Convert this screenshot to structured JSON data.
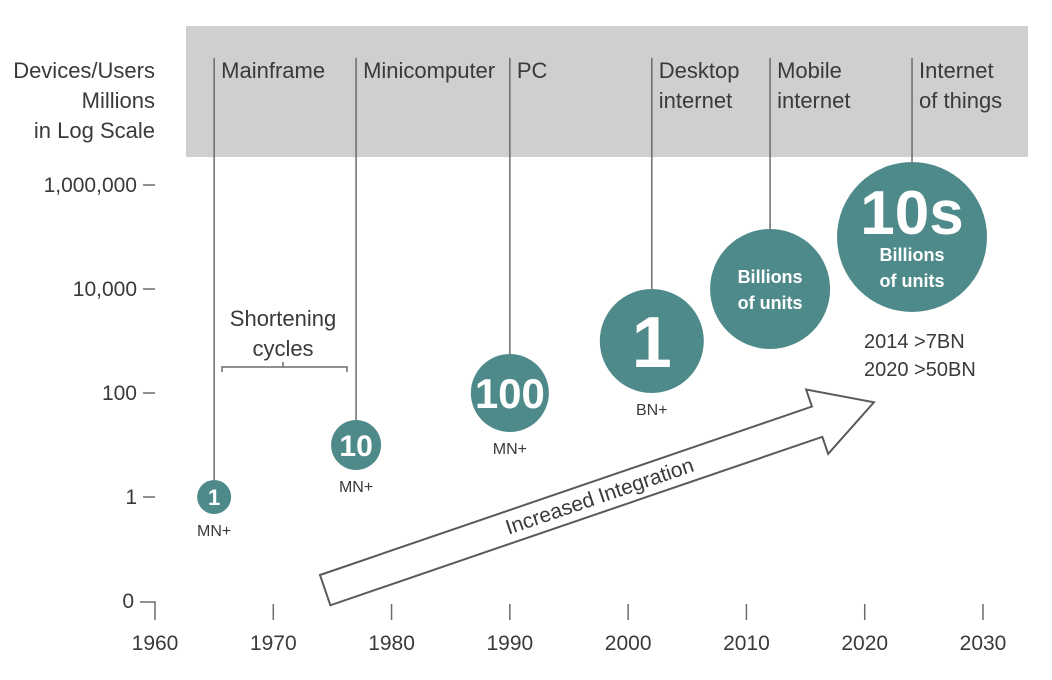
{
  "chart_data": {
    "type": "scatter",
    "ylabel": [
      "Devices/Users",
      "Millions",
      "in Log Scale"
    ],
    "y_scale": "log",
    "y_ticks": [
      "0",
      "1",
      "100",
      "10,000",
      "1,000,000"
    ],
    "x_ticks": [
      "1960",
      "1970",
      "1980",
      "1990",
      "2000",
      "2010",
      "2020",
      "2030"
    ],
    "xlim": [
      1960,
      2030
    ],
    "eras": [
      {
        "label": [
          "Mainframe"
        ],
        "year": 1965
      },
      {
        "label": [
          "Minicomputer"
        ],
        "year": 1977
      },
      {
        "label": [
          "PC"
        ],
        "year": 1990
      },
      {
        "label": [
          "Desktop",
          "internet"
        ],
        "year": 2002
      },
      {
        "label": [
          "Mobile",
          "internet"
        ],
        "year": 2012
      },
      {
        "label": [
          "Internet",
          "of things"
        ],
        "year": 2024
      }
    ],
    "points": [
      {
        "x": 1965,
        "y": 1,
        "text": [
          "1"
        ],
        "unit": "MN+",
        "size": "xs"
      },
      {
        "x": 1977,
        "y": 10,
        "text": [
          "10"
        ],
        "unit": "MN+",
        "size": "s"
      },
      {
        "x": 1990,
        "y": 100,
        "text": [
          "100"
        ],
        "unit": "MN+",
        "size": "m"
      },
      {
        "x": 2002,
        "y": 1000,
        "text": [
          "1"
        ],
        "unit": "BN+",
        "size": "l"
      },
      {
        "x": 2012,
        "y": 10000,
        "text": [
          "Billions",
          "of units"
        ],
        "unit": "",
        "size": "xl"
      },
      {
        "x": 2024,
        "y": 100000,
        "text": [
          "10s",
          "Billions",
          "of units"
        ],
        "unit": "",
        "size": "xxl"
      }
    ],
    "annotations": {
      "cycles": [
        "Shortening",
        "cycles"
      ],
      "integration": "Increased Integration",
      "iot_stats": [
        "2014 >7BN",
        "2020 >50BN"
      ]
    },
    "colors": {
      "bubble": "#4f8a8b",
      "band": "#cfcfd1",
      "line": "#6b6b6b",
      "text": "#3a3a3a"
    }
  }
}
